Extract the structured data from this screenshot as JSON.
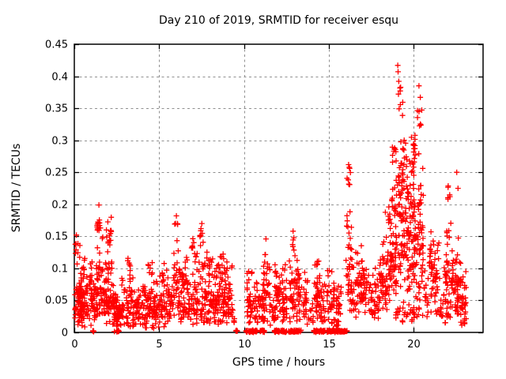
{
  "page": {
    "background": "#ffffff"
  },
  "chart_data": {
    "type": "scatter",
    "title": "Day 210 of 2019, SRMTID for receiver esqu",
    "xlabel": "GPS time / hours",
    "ylabel": "SRMTID / TECUs",
    "xlim": [
      0,
      24.1
    ],
    "ylim": [
      0,
      0.45
    ],
    "xticks": [
      0,
      5,
      10,
      15,
      20
    ],
    "xtick_labels": [
      "0",
      "5",
      "10",
      "15",
      "20"
    ],
    "yticks": [
      0,
      0.05,
      0.1,
      0.15,
      0.2,
      0.25,
      0.3,
      0.35,
      0.4,
      0.45
    ],
    "ytick_labels": [
      "0",
      "0.05",
      "0.1",
      "0.15",
      "0.2",
      "0.25",
      "0.3",
      "0.35",
      "0.4",
      "0.45"
    ],
    "grid": true,
    "grid_style": "dashed",
    "legend": "none",
    "marker": {
      "shape": "plus",
      "color": "#ff0000",
      "size": 7
    },
    "colors": {
      "marker": "#ff0000",
      "grid": "#909090",
      "axis": "#000000",
      "text": "#000000"
    },
    "seed": 20190210,
    "notable_points": [
      [
        0.12,
        0.152
      ],
      [
        1.45,
        0.199
      ],
      [
        6.02,
        0.182
      ],
      [
        7.52,
        0.17
      ],
      [
        11.3,
        0.146
      ],
      [
        12.9,
        0.158
      ],
      [
        16.17,
        0.262
      ],
      [
        19.07,
        0.417
      ],
      [
        19.09,
        0.407
      ],
      [
        19.13,
        0.392
      ],
      [
        20.32,
        0.385
      ],
      [
        20.4,
        0.367
      ],
      [
        22.55,
        0.25
      ],
      [
        22.62,
        0.225
      ]
    ],
    "scatter_clusters": [
      [
        0.02,
        0.48,
        0.005,
        0.108,
        60,
        1.35
      ],
      [
        0.05,
        0.35,
        0.1,
        0.153,
        9,
        1.0
      ],
      [
        0.35,
        1.05,
        0.006,
        0.128,
        80,
        1.4
      ],
      [
        1.05,
        1.16,
        0.0,
        0.004,
        5,
        1.0
      ],
      [
        1.0,
        1.32,
        0.01,
        0.092,
        30,
        1.3
      ],
      [
        1.3,
        1.7,
        0.02,
        0.152,
        48,
        1.35
      ],
      [
        1.33,
        1.6,
        0.148,
        0.188,
        13,
        1.0
      ],
      [
        1.7,
        2.3,
        0.01,
        0.128,
        70,
        1.4
      ],
      [
        1.88,
        2.18,
        0.128,
        0.186,
        14,
        1.0
      ],
      [
        2.3,
        2.72,
        0.004,
        0.064,
        60,
        1.3
      ],
      [
        2.33,
        2.66,
        0.0,
        0.004,
        8,
        1.0
      ],
      [
        2.7,
        5.9,
        0.006,
        0.1,
        235,
        1.45
      ],
      [
        3.05,
        3.35,
        0.092,
        0.128,
        7,
        1.0
      ],
      [
        4.35,
        4.65,
        0.088,
        0.118,
        6,
        1.0
      ],
      [
        5.05,
        5.6,
        0.06,
        0.112,
        12,
        1.2
      ],
      [
        5.85,
        6.2,
        0.02,
        0.155,
        30,
        1.25
      ],
      [
        5.9,
        6.12,
        0.155,
        0.185,
        4,
        1.0
      ],
      [
        6.15,
        9.35,
        0.012,
        0.108,
        265,
        1.4
      ],
      [
        6.4,
        9.3,
        0.085,
        0.128,
        40,
        1.15
      ],
      [
        6.9,
        7.15,
        0.115,
        0.15,
        7,
        1.0
      ],
      [
        7.4,
        7.65,
        0.13,
        0.172,
        8,
        1.0
      ],
      [
        9.38,
        9.6,
        0.005,
        0.03,
        4,
        1.0
      ],
      [
        9.5,
        9.68,
        0.0,
        0.004,
        6,
        1.0
      ],
      [
        10.12,
        10.78,
        0.0,
        0.004,
        42,
        1.0
      ],
      [
        10.15,
        10.5,
        0.012,
        0.108,
        34,
        1.35
      ],
      [
        10.5,
        10.92,
        0.012,
        0.096,
        28,
        1.35
      ],
      [
        10.95,
        11.22,
        0.0,
        0.004,
        14,
        1.0
      ],
      [
        10.98,
        11.25,
        0.01,
        0.086,
        18,
        1.3
      ],
      [
        11.1,
        11.55,
        0.015,
        0.145,
        38,
        1.35
      ],
      [
        11.55,
        11.78,
        0.01,
        0.06,
        10,
        1.3
      ],
      [
        11.78,
        12.52,
        0.0,
        0.004,
        48,
        1.0
      ],
      [
        11.8,
        12.15,
        0.012,
        0.122,
        42,
        1.35
      ],
      [
        12.2,
        12.55,
        0.012,
        0.115,
        34,
        1.35
      ],
      [
        12.62,
        13.0,
        0.0,
        0.004,
        22,
        1.0
      ],
      [
        12.68,
        13.02,
        0.012,
        0.125,
        36,
        1.35
      ],
      [
        12.85,
        12.98,
        0.125,
        0.158,
        5,
        1.0
      ],
      [
        13.05,
        13.38,
        0.0,
        0.004,
        18,
        1.0
      ],
      [
        13.08,
        13.42,
        0.012,
        0.118,
        30,
        1.35
      ],
      [
        13.45,
        13.75,
        0.012,
        0.1,
        24,
        1.35
      ],
      [
        13.8,
        14.1,
        0.01,
        0.062,
        10,
        1.3
      ],
      [
        14.12,
        14.78,
        0.0,
        0.004,
        46,
        1.0
      ],
      [
        14.15,
        14.52,
        0.012,
        0.135,
        38,
        1.35
      ],
      [
        14.52,
        14.8,
        0.012,
        0.092,
        20,
        1.35
      ],
      [
        14.88,
        15.38,
        0.0,
        0.004,
        34,
        1.0
      ],
      [
        14.9,
        15.35,
        0.012,
        0.112,
        34,
        1.35
      ],
      [
        15.15,
        15.55,
        0.004,
        0.024,
        10,
        1.1
      ],
      [
        15.42,
        15.82,
        0.0,
        0.004,
        30,
        1.0
      ],
      [
        15.45,
        15.75,
        0.012,
        0.1,
        24,
        1.35
      ],
      [
        15.85,
        16.08,
        0.0,
        0.004,
        12,
        1.0
      ],
      [
        16.0,
        16.4,
        0.03,
        0.2,
        38,
        1.3
      ],
      [
        16.08,
        16.3,
        0.2,
        0.262,
        8,
        1.0
      ],
      [
        16.35,
        17.1,
        0.02,
        0.138,
        62,
        1.4
      ],
      [
        17.1,
        18.0,
        0.015,
        0.108,
        56,
        1.4
      ],
      [
        18.0,
        18.62,
        0.03,
        0.158,
        56,
        1.3
      ],
      [
        18.3,
        18.62,
        0.158,
        0.205,
        8,
        1.0
      ],
      [
        18.62,
        19.05,
        0.05,
        0.25,
        65,
        1.25
      ],
      [
        18.75,
        19.02,
        0.25,
        0.305,
        9,
        1.0
      ],
      [
        19.05,
        19.62,
        0.06,
        0.33,
        85,
        1.2
      ],
      [
        19.1,
        19.45,
        0.33,
        0.4,
        8,
        1.0
      ],
      [
        19.62,
        20.02,
        0.05,
        0.315,
        65,
        1.25
      ],
      [
        19.95,
        20.18,
        0.27,
        0.312,
        10,
        1.0
      ],
      [
        20.02,
        20.58,
        0.04,
        0.3,
        75,
        1.25
      ],
      [
        20.2,
        20.5,
        0.3,
        0.388,
        7,
        1.0
      ],
      [
        18.85,
        20.6,
        0.015,
        0.05,
        35,
        1.1
      ],
      [
        20.6,
        20.92,
        0.02,
        0.115,
        14,
        1.3
      ],
      [
        20.92,
        21.18,
        0.025,
        0.21,
        26,
        1.25
      ],
      [
        21.18,
        21.58,
        0.015,
        0.175,
        30,
        1.3
      ],
      [
        21.58,
        21.78,
        0.012,
        0.06,
        8,
        1.2
      ],
      [
        21.78,
        22.38,
        0.012,
        0.2,
        62,
        1.35
      ],
      [
        21.9,
        22.15,
        0.2,
        0.238,
        6,
        1.0
      ],
      [
        22.38,
        22.78,
        0.015,
        0.16,
        40,
        1.35
      ],
      [
        22.78,
        23.1,
        0.01,
        0.112,
        36,
        1.35
      ]
    ]
  }
}
